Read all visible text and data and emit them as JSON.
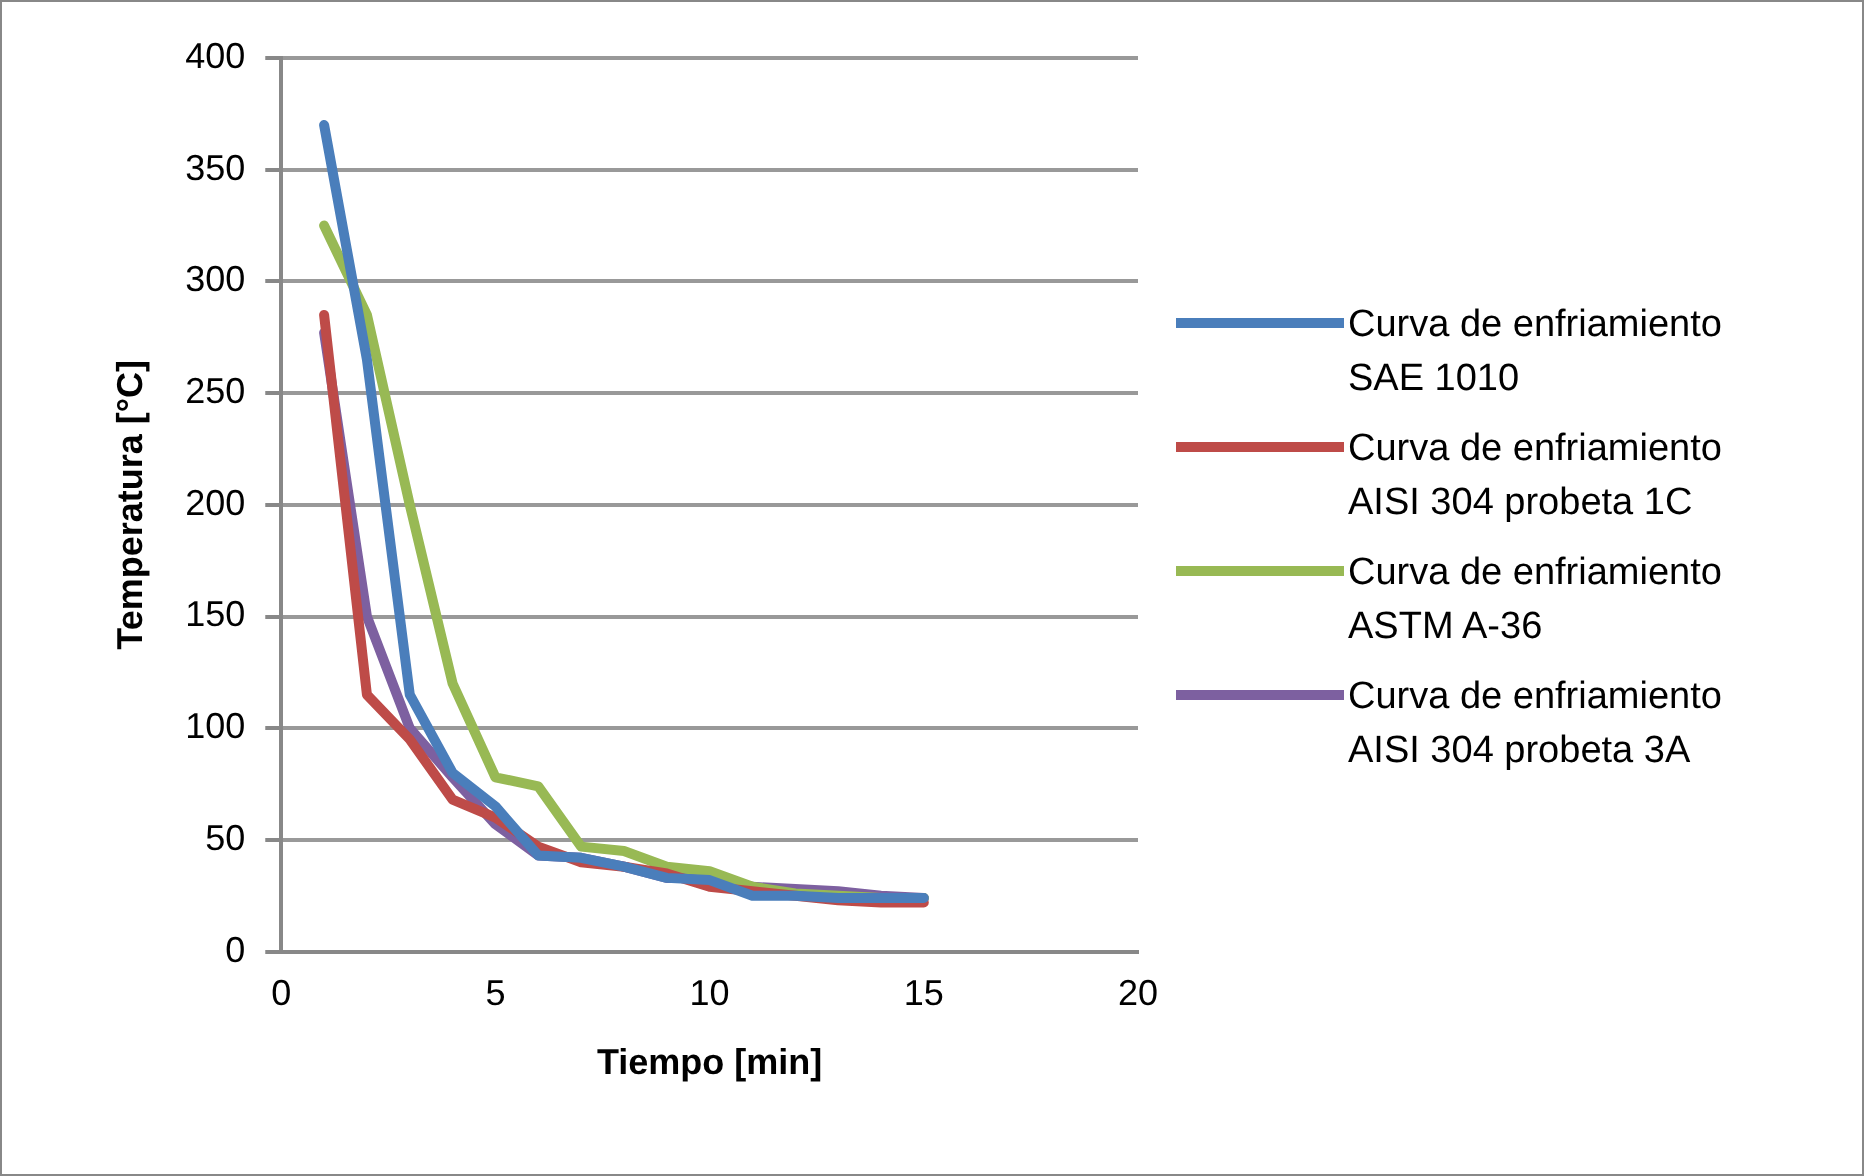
{
  "chart_data": {
    "type": "line",
    "xlabel": "Tiempo [min]",
    "ylabel": "Temperatura [°C]",
    "x": [
      1,
      2,
      3,
      4,
      5,
      6,
      7,
      8,
      9,
      10,
      11,
      12,
      13,
      14,
      15
    ],
    "xlim": [
      0,
      20
    ],
    "xticks": [
      0,
      5,
      10,
      15,
      20
    ],
    "ylim": [
      0,
      400
    ],
    "yticks": [
      0,
      50,
      100,
      150,
      200,
      250,
      300,
      350,
      400
    ],
    "grid": "y",
    "legend": "right",
    "marker": "none",
    "line_style": "solid",
    "series": [
      {
        "name": "Curva de enfriamiento SAE 1010",
        "color": "#4a7ebb",
        "values": [
          370,
          265,
          115,
          80,
          65,
          43,
          42,
          38,
          33,
          32,
          25,
          25,
          24,
          24,
          24
        ]
      },
      {
        "name": "Curva de enfriamiento AISI 304 probeta 1C",
        "color": "#be4b48",
        "values": [
          285,
          115,
          95,
          68,
          60,
          47,
          40,
          38,
          35,
          29,
          27,
          25,
          23,
          22,
          22
        ]
      },
      {
        "name": "Curva de enfriamiento ASTM A-36",
        "color": "#98b954",
        "values": [
          325,
          285,
          200,
          120,
          78,
          74,
          47,
          45,
          38,
          36,
          29,
          26,
          25,
          24,
          24
        ]
      },
      {
        "name": "Curva de enfriamiento AISI 304 probeta 3A",
        "color": "#7d60a0",
        "values": [
          277,
          150,
          100,
          78,
          57,
          43,
          42,
          38,
          33,
          33,
          29,
          28,
          27,
          25,
          24
        ]
      }
    ]
  }
}
